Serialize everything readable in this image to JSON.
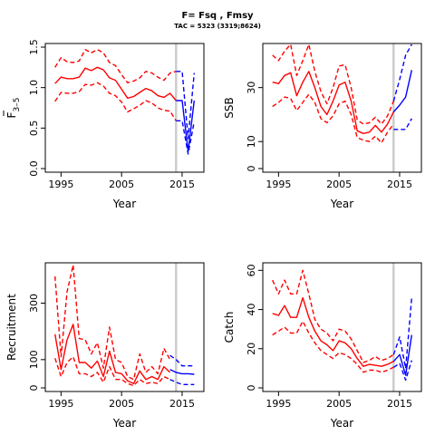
{
  "title": "F= Fsq , Fmsy",
  "subtitle": "TAC = 5323 (3319;8624)",
  "colors": {
    "historic": "#ff0000",
    "projection": "#0000ff",
    "divider": "#cccccc",
    "axis": "#000000"
  },
  "divider_year": 2014,
  "chart_data": [
    {
      "type": "line",
      "panel": "F",
      "xlabel": "Year",
      "ylabel_main": "F",
      "ylabel_sub": "3–5",
      "xlim": [
        1993,
        2018
      ],
      "ylim": [
        0,
        1.5
      ],
      "xticks": [
        1995,
        2005,
        2015
      ],
      "yticks": [
        0.0,
        0.5,
        1.0,
        1.5
      ],
      "ytick_labels": [
        "0.0",
        "0.5",
        "1.0",
        "1.5"
      ],
      "series": [
        {
          "role": "historic-median",
          "style": "solid",
          "color": "#ff0000",
          "x": [
            1994,
            1995,
            1996,
            1997,
            1998,
            1999,
            2000,
            2001,
            2002,
            2003,
            2004,
            2005,
            2006,
            2007,
            2008,
            2009,
            2010,
            2011,
            2012,
            2013,
            2014
          ],
          "y": [
            1.05,
            1.13,
            1.11,
            1.11,
            1.13,
            1.24,
            1.21,
            1.25,
            1.22,
            1.12,
            1.09,
            0.98,
            0.87,
            0.89,
            0.94,
            0.99,
            0.96,
            0.9,
            0.88,
            0.93,
            0.84
          ]
        },
        {
          "role": "historic-upper",
          "style": "dashed",
          "color": "#ff0000",
          "x": [
            1994,
            1995,
            1996,
            1997,
            1998,
            1999,
            2000,
            2001,
            2002,
            2003,
            2004,
            2005,
            2006,
            2007,
            2008,
            2009,
            2010,
            2011,
            2012,
            2013,
            2014
          ],
          "y": [
            1.25,
            1.37,
            1.32,
            1.31,
            1.33,
            1.47,
            1.43,
            1.47,
            1.43,
            1.31,
            1.27,
            1.16,
            1.06,
            1.08,
            1.12,
            1.2,
            1.18,
            1.13,
            1.09,
            1.18,
            1.2
          ]
        },
        {
          "role": "historic-lower",
          "style": "dashed",
          "color": "#ff0000",
          "x": [
            1994,
            1995,
            1996,
            1997,
            1998,
            1999,
            2000,
            2001,
            2002,
            2003,
            2004,
            2005,
            2006,
            2007,
            2008,
            2009,
            2010,
            2011,
            2012,
            2013,
            2014
          ],
          "y": [
            0.83,
            0.94,
            0.93,
            0.93,
            0.95,
            1.04,
            1.03,
            1.06,
            1.02,
            0.93,
            0.9,
            0.82,
            0.7,
            0.74,
            0.78,
            0.84,
            0.81,
            0.75,
            0.72,
            0.71,
            0.59
          ]
        },
        {
          "role": "projection-median",
          "style": "solid",
          "color": "#0000ff",
          "x": [
            2014,
            2015,
            2016,
            2017
          ],
          "y": [
            0.84,
            0.84,
            0.21,
            0.84
          ]
        },
        {
          "role": "projection-upper",
          "style": "dashed",
          "color": "#0000ff",
          "x": [
            2014,
            2015,
            2016,
            2017
          ],
          "y": [
            1.2,
            1.2,
            0.37,
            1.18
          ]
        },
        {
          "role": "projection-lower",
          "style": "dashed",
          "color": "#0000ff",
          "x": [
            2014,
            2015,
            2016,
            2017
          ],
          "y": [
            0.59,
            0.59,
            0.18,
            0.58
          ]
        }
      ]
    },
    {
      "type": "line",
      "panel": "SSB",
      "xlabel": "Year",
      "ylabel_main": "SSB",
      "xlim": [
        1993,
        2018
      ],
      "ylim": [
        0,
        45
      ],
      "xticks": [
        1995,
        2005,
        2015
      ],
      "yticks": [
        0,
        10,
        30
      ],
      "ytick_labels": [
        "0",
        "10",
        "30"
      ],
      "series": [
        {
          "role": "historic-median",
          "style": "solid",
          "color": "#ff0000",
          "x": [
            1994,
            1995,
            1996,
            1997,
            1998,
            1999,
            2000,
            2001,
            2002,
            2003,
            2004,
            2005,
            2006,
            2007,
            2008,
            2009,
            2010,
            2011,
            2012,
            2013,
            2014
          ],
          "y": [
            32,
            31.5,
            34.5,
            35.5,
            27,
            32,
            36,
            30,
            23,
            20,
            25,
            31,
            32,
            25,
            14,
            13,
            13.5,
            16,
            13.5,
            16.5,
            21
          ]
        },
        {
          "role": "historic-upper",
          "style": "dashed",
          "color": "#ff0000",
          "x": [
            1994,
            1995,
            1996,
            1997,
            1998,
            1999,
            2000,
            2001,
            2002,
            2003,
            2004,
            2005,
            2006,
            2007,
            2008,
            2009,
            2010,
            2011,
            2012,
            2013,
            2014
          ],
          "y": [
            42,
            40,
            43.5,
            46.5,
            34.5,
            40,
            46,
            36,
            28.5,
            24,
            30,
            38,
            38.5,
            30,
            18,
            16.5,
            17,
            19,
            16.5,
            19.5,
            25
          ]
        },
        {
          "role": "historic-lower",
          "style": "dashed",
          "color": "#ff0000",
          "x": [
            1994,
            1995,
            1996,
            1997,
            1998,
            1999,
            2000,
            2001,
            2002,
            2003,
            2004,
            2005,
            2006,
            2007,
            2008,
            2009,
            2010,
            2011,
            2012,
            2013,
            2014
          ],
          "y": [
            23,
            24.5,
            26.5,
            26,
            21.5,
            24.5,
            27.5,
            24.5,
            18.5,
            17,
            19.5,
            24,
            25,
            20,
            11.5,
            10.5,
            10,
            12,
            9.5,
            13.5,
            16.5
          ]
        },
        {
          "role": "projection-median",
          "style": "solid",
          "color": "#0000ff",
          "x": [
            2014,
            2015,
            2016,
            2017
          ],
          "y": [
            21,
            23.5,
            26.5,
            36.5
          ]
        },
        {
          "role": "projection-upper",
          "style": "dashed",
          "color": "#0000ff",
          "x": [
            2014,
            2015,
            2016,
            2017
          ],
          "y": [
            25,
            33,
            42,
            50
          ]
        },
        {
          "role": "projection-lower",
          "style": "dashed",
          "color": "#0000ff",
          "x": [
            2014,
            2015,
            2016,
            2017
          ],
          "y": [
            14.5,
            14.5,
            14.5,
            18.5
          ]
        }
      ]
    },
    {
      "type": "line",
      "panel": "Recruitment",
      "xlabel": "Year",
      "ylabel_main": "Recruitment",
      "xlim": [
        1993,
        2018
      ],
      "ylim": [
        0,
        430
      ],
      "xticks": [
        1995,
        2005,
        2015
      ],
      "yticks": [
        0,
        100,
        300
      ],
      "ytick_labels": [
        "0",
        "100",
        "300"
      ],
      "series": [
        {
          "role": "historic-median",
          "style": "solid",
          "color": "#ff0000",
          "x": [
            1994,
            1995,
            1996,
            1997,
            1998,
            1999,
            2000,
            2001,
            2002,
            2003,
            2004,
            2005,
            2006,
            2007,
            2008,
            2009,
            2010,
            2011,
            2012,
            2013
          ],
          "y": [
            190,
            65,
            170,
            225,
            90,
            90,
            70,
            95,
            40,
            130,
            55,
            50,
            25,
            15,
            60,
            30,
            40,
            30,
            75,
            55
          ]
        },
        {
          "role": "historic-upper",
          "style": "dashed",
          "color": "#ff0000",
          "x": [
            1994,
            1995,
            1996,
            1997,
            1998,
            1999,
            2000,
            2001,
            2002,
            2003,
            2004,
            2005,
            2006,
            2007,
            2008,
            2009,
            2010,
            2011,
            2012,
            2013
          ],
          "y": [
            395,
            110,
            340,
            435,
            175,
            170,
            120,
            160,
            70,
            215,
            100,
            90,
            40,
            30,
            120,
            55,
            75,
            50,
            140,
            100
          ]
        },
        {
          "role": "historic-lower",
          "style": "dashed",
          "color": "#ff0000",
          "x": [
            1994,
            1995,
            1996,
            1997,
            1998,
            1999,
            2000,
            2001,
            2002,
            2003,
            2004,
            2005,
            2006,
            2007,
            2008,
            2009,
            2010,
            2011,
            2012,
            2013
          ],
          "y": [
            105,
            40,
            90,
            110,
            50,
            50,
            40,
            55,
            20,
            75,
            30,
            30,
            15,
            8,
            30,
            15,
            20,
            15,
            40,
            30
          ]
        },
        {
          "role": "projection-median",
          "style": "solid",
          "color": "#0000ff",
          "x": [
            2013,
            2014,
            2015,
            2016,
            2017
          ],
          "y": [
            65,
            55,
            50,
            50,
            48
          ]
        },
        {
          "role": "projection-upper",
          "style": "dashed",
          "color": "#0000ff",
          "x": [
            2013,
            2014,
            2015,
            2016,
            2017
          ],
          "y": [
            115,
            100,
            78,
            78,
            78
          ]
        },
        {
          "role": "projection-lower",
          "style": "dashed",
          "color": "#0000ff",
          "x": [
            2013,
            2014,
            2015,
            2016,
            2017
          ],
          "y": [
            30,
            20,
            12,
            12,
            12
          ]
        }
      ]
    },
    {
      "type": "line",
      "panel": "Catch",
      "xlabel": "Year",
      "ylabel_main": "Catch",
      "xlim": [
        1993,
        2018
      ],
      "ylim": [
        0,
        62
      ],
      "xticks": [
        1995,
        2005,
        2015
      ],
      "yticks": [
        0,
        20,
        40,
        60
      ],
      "ytick_labels": [
        "0",
        "20",
        "40",
        "60"
      ],
      "series": [
        {
          "role": "historic-median",
          "style": "solid",
          "color": "#ff0000",
          "x": [
            1994,
            1995,
            1996,
            1997,
            1998,
            1999,
            2000,
            2001,
            2002,
            2003,
            2004,
            2005,
            2006,
            2007,
            2008,
            2009,
            2010,
            2011,
            2012,
            2013,
            2014
          ],
          "y": [
            38,
            37,
            42,
            36,
            36,
            46,
            36,
            29,
            24,
            22,
            19,
            24,
            23,
            20,
            15,
            11,
            12,
            11.5,
            11,
            12,
            13.5
          ]
        },
        {
          "role": "historic-upper",
          "style": "dashed",
          "color": "#ff0000",
          "x": [
            1994,
            1995,
            1996,
            1997,
            1998,
            1999,
            2000,
            2001,
            2002,
            2003,
            2004,
            2005,
            2006,
            2007,
            2008,
            2009,
            2010,
            2011,
            2012,
            2013,
            2014
          ],
          "y": [
            55,
            48,
            55,
            48,
            48,
            60,
            48,
            35,
            30,
            28,
            24,
            30,
            29,
            25,
            19,
            13,
            14,
            16,
            14,
            15,
            17
          ]
        },
        {
          "role": "historic-lower",
          "style": "dashed",
          "color": "#ff0000",
          "x": [
            1994,
            1995,
            1996,
            1997,
            1998,
            1999,
            2000,
            2001,
            2002,
            2003,
            2004,
            2005,
            2006,
            2007,
            2008,
            2009,
            2010,
            2011,
            2012,
            2013,
            2014
          ],
          "y": [
            27,
            29,
            31,
            28,
            28,
            34,
            28,
            23,
            19,
            17,
            15,
            18,
            17,
            15,
            12,
            8,
            9,
            9,
            8,
            9,
            10.5
          ]
        },
        {
          "role": "projection-median",
          "style": "solid",
          "color": "#0000ff",
          "x": [
            2014,
            2015,
            2016,
            2017
          ],
          "y": [
            13.5,
            17,
            6.5,
            27
          ]
        },
        {
          "role": "projection-upper",
          "style": "dashed",
          "color": "#0000ff",
          "x": [
            2014,
            2015,
            2016,
            2017
          ],
          "y": [
            17,
            26,
            10,
            46
          ]
        },
        {
          "role": "projection-lower",
          "style": "dashed",
          "color": "#0000ff",
          "x": [
            2014,
            2015,
            2016,
            2017
          ],
          "y": [
            10.5,
            12.5,
            4,
            14
          ]
        }
      ]
    }
  ]
}
